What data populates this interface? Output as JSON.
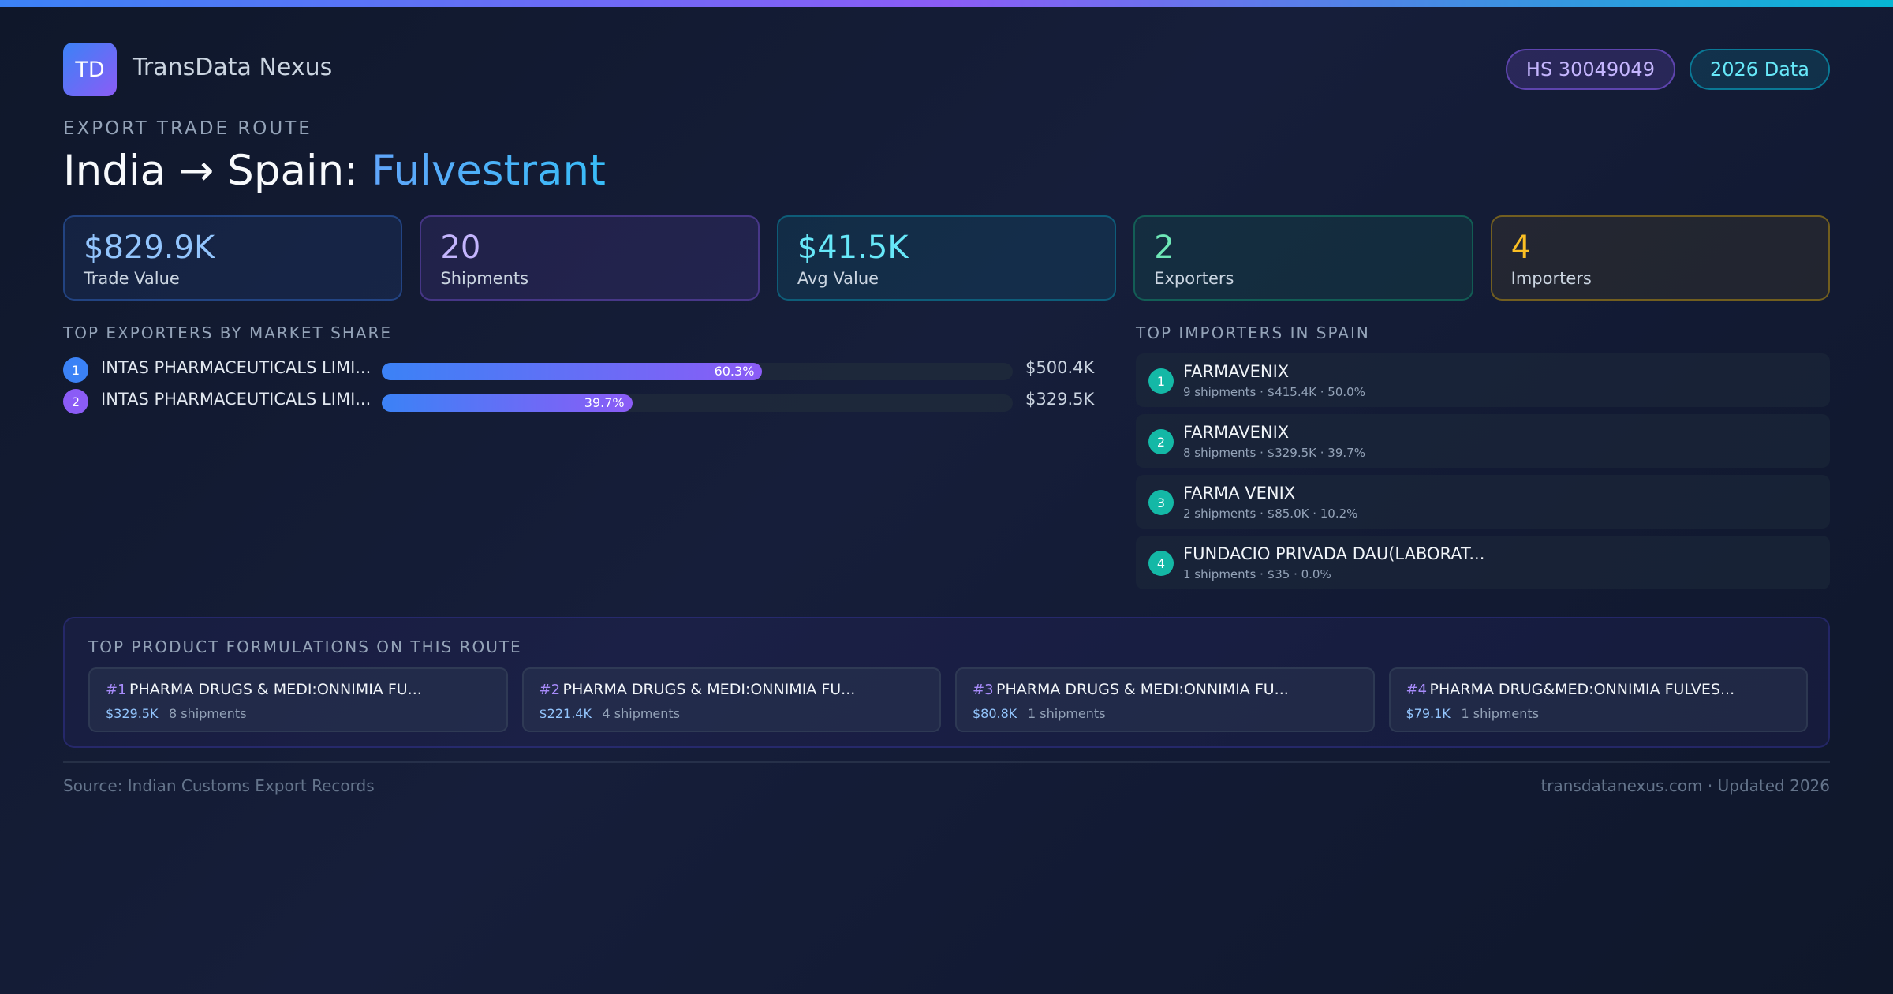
{
  "header": {
    "logo_text": "TD",
    "brand": "TransData Nexus",
    "badges": {
      "hs": "HS 30049049",
      "year": "2026 Data"
    }
  },
  "route": {
    "eyebrow": "EXPORT TRADE ROUTE",
    "title_prefix": "India → Spain:",
    "product": "Fulvestrant"
  },
  "stats": [
    {
      "value": "$829.9K",
      "label": "Trade Value"
    },
    {
      "value": "20",
      "label": "Shipments"
    },
    {
      "value": "$41.5K",
      "label": "Avg Value"
    },
    {
      "value": "2",
      "label": "Exporters"
    },
    {
      "value": "4",
      "label": "Importers"
    }
  ],
  "exporters": {
    "heading": "TOP EXPORTERS BY MARKET SHARE",
    "items": [
      {
        "rank": "1",
        "name": "INTAS PHARMACEUTICALS LIMI...",
        "share": 60.3,
        "share_label": "60.3%",
        "value": "$500.4K",
        "color": "#3b82f6"
      },
      {
        "rank": "2",
        "name": "INTAS PHARMACEUTICALS LIMI...",
        "share": 39.7,
        "share_label": "39.7%",
        "value": "$329.5K",
        "color": "#8b5cf6"
      }
    ]
  },
  "importers": {
    "heading": "TOP IMPORTERS IN SPAIN",
    "items": [
      {
        "rank": "1",
        "name": "FARMAVENIX",
        "meta": "9 shipments · $415.4K · 50.0%"
      },
      {
        "rank": "2",
        "name": "FARMAVENIX",
        "meta": "8 shipments · $329.5K · 39.7%"
      },
      {
        "rank": "3",
        "name": "FARMA VENIX",
        "meta": "2 shipments · $85.0K · 10.2%"
      },
      {
        "rank": "4",
        "name": "FUNDACIO PRIVADA DAU(LABORAT...",
        "meta": "1 shipments · $35 · 0.0%"
      }
    ]
  },
  "formulations": {
    "heading": "TOP PRODUCT FORMULATIONS ON THIS ROUTE",
    "items": [
      {
        "rank": "#1",
        "name": "PHARMA DRUGS & MEDI:ONNIMIA FU...",
        "value": "$329.5K",
        "shipments": "8 shipments"
      },
      {
        "rank": "#2",
        "name": "PHARMA DRUGS & MEDI:ONNIMIA FU...",
        "value": "$221.4K",
        "shipments": "4 shipments"
      },
      {
        "rank": "#3",
        "name": "PHARMA DRUGS & MEDI:ONNIMIA FU...",
        "value": "$80.8K",
        "shipments": "1 shipments"
      },
      {
        "rank": "#4",
        "name": "PHARMA DRUG&MED:ONNIMIA FULVES...",
        "value": "$79.1K",
        "shipments": "1 shipments"
      }
    ]
  },
  "footer": {
    "source": "Source: Indian Customs Export Records",
    "site": "transdatanexus.com · Updated 2026"
  }
}
